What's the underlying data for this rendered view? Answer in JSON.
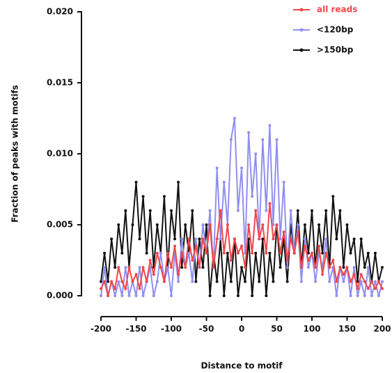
{
  "chart_data": {
    "type": "line",
    "xlabel": "Distance to motif",
    "ylabel": "Fraction of peaks with motifs",
    "xlim": [
      -200,
      200
    ],
    "xticks": [
      -200,
      -150,
      -100,
      -50,
      0,
      50,
      100,
      150,
      200
    ],
    "ylim": [
      0,
      0.02
    ],
    "yticks": [
      {
        "value": 0,
        "label": "0.000"
      },
      {
        "value": 0.005,
        "label": "0.005"
      },
      {
        "value": 0.01,
        "label": "0.010"
      },
      {
        "value": 0.015,
        "label": "0.015"
      },
      {
        "value": 0.02,
        "label": "0.020"
      }
    ],
    "legend": "top-right",
    "x": [
      -200,
      -195,
      -190,
      -185,
      -180,
      -175,
      -170,
      -165,
      -160,
      -155,
      -150,
      -145,
      -140,
      -135,
      -130,
      -125,
      -120,
      -115,
      -110,
      -105,
      -100,
      -95,
      -90,
      -85,
      -80,
      -75,
      -70,
      -65,
      -60,
      -55,
      -50,
      -45,
      -40,
      -35,
      -30,
      -25,
      -20,
      -15,
      -10,
      -5,
      0,
      5,
      10,
      15,
      20,
      25,
      30,
      35,
      40,
      45,
      50,
      55,
      60,
      65,
      70,
      75,
      80,
      85,
      90,
      95,
      100,
      105,
      110,
      115,
      120,
      125,
      130,
      135,
      140,
      145,
      150,
      155,
      160,
      165,
      170,
      175,
      180,
      185,
      190,
      195,
      200
    ],
    "series": [
      {
        "name": "all reads",
        "color": "#f0464b",
        "values": [
          0.0005,
          0.001,
          0,
          0.001,
          0.0005,
          0.002,
          0.001,
          0.0005,
          0.002,
          0.001,
          0.0015,
          0.0005,
          0.002,
          0.001,
          0.0025,
          0.0015,
          0.003,
          0.002,
          0.001,
          0.003,
          0.002,
          0.0035,
          0.0015,
          0.003,
          0.002,
          0.004,
          0.0025,
          0.0035,
          0.002,
          0.004,
          0.003,
          0.005,
          0.002,
          0.004,
          0.006,
          0.003,
          0.005,
          0.0025,
          0.004,
          0.003,
          0.0035,
          0.002,
          0.005,
          0.003,
          0.006,
          0.004,
          0.005,
          0.003,
          0.0065,
          0.004,
          0.005,
          0.003,
          0.0045,
          0.0025,
          0.004,
          0.003,
          0.0045,
          0.002,
          0.0035,
          0.0025,
          0.003,
          0.002,
          0.0035,
          0.0015,
          0.003,
          0.002,
          0.0025,
          0.001,
          0.002,
          0.0015,
          0.002,
          0.001,
          0.0015,
          0.0005,
          0.0015,
          0.001,
          0.0005,
          0.001,
          0.0005,
          0.001,
          0.0005
        ]
      },
      {
        "name": "<120bp",
        "color": "#8f8ff0",
        "values": [
          0,
          0.002,
          0,
          0.001,
          0,
          0.001,
          0,
          0.002,
          0,
          0.001,
          0,
          0.002,
          0,
          0.001,
          0.002,
          0,
          0.001,
          0.003,
          0.001,
          0.002,
          0,
          0.003,
          0.001,
          0.004,
          0.002,
          0.003,
          0.001,
          0.004,
          0.002,
          0.005,
          0.003,
          0.006,
          0.002,
          0.009,
          0.004,
          0.008,
          0.005,
          0.011,
          0.0125,
          0.006,
          0.009,
          0.003,
          0.0115,
          0.007,
          0.01,
          0.004,
          0.011,
          0.006,
          0.012,
          0.005,
          0.011,
          0.004,
          0.008,
          0.002,
          0.006,
          0.003,
          0.005,
          0.001,
          0.004,
          0.002,
          0.003,
          0.001,
          0.003,
          0.002,
          0.004,
          0.001,
          0.002,
          0,
          0.002,
          0.001,
          0.002,
          0,
          0.002,
          0,
          0.001,
          0,
          0.002,
          0,
          0.001,
          0,
          0.001
        ]
      },
      {
        "name": ">150bp",
        "color": "#111111",
        "values": [
          0.001,
          0.003,
          0.001,
          0.004,
          0.002,
          0.005,
          0.003,
          0.006,
          0.002,
          0.005,
          0.008,
          0.004,
          0.007,
          0.003,
          0.006,
          0.002,
          0.005,
          0.003,
          0.007,
          0.002,
          0.006,
          0.004,
          0.008,
          0.002,
          0.005,
          0.003,
          0.006,
          0.001,
          0.004,
          0.002,
          0.005,
          0,
          0.003,
          0.001,
          0.004,
          0,
          0.003,
          0.001,
          0.004,
          0,
          0.002,
          0.001,
          0.004,
          0,
          0.003,
          0.001,
          0.004,
          0,
          0.003,
          0.001,
          0.005,
          0.002,
          0.004,
          0.001,
          0.005,
          0.003,
          0.006,
          0.002,
          0.005,
          0.003,
          0.006,
          0.002,
          0.005,
          0.003,
          0.006,
          0.002,
          0.007,
          0.004,
          0.006,
          0.002,
          0.005,
          0.003,
          0.004,
          0.001,
          0.004,
          0.002,
          0.003,
          0.001,
          0.003,
          0.001,
          0.002
        ]
      }
    ]
  }
}
